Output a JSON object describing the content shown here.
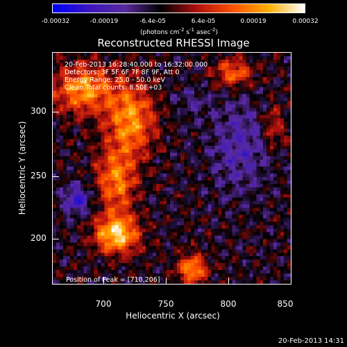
{
  "colorbar": {
    "ticks": [
      "-0.00032",
      "-0.00019",
      "-6.4e-05",
      "6.4e-05",
      "0.00019",
      "0.00032"
    ],
    "units": {
      "base": "(photons cm",
      "e1": "-2",
      "mid": " s",
      "e2": "-1",
      "mid2": " asec",
      "e3": "-2",
      "end": ")"
    },
    "colors": [
      "#0000ff",
      "#3a16c0",
      "#5a2aa0",
      "#000000",
      "#b01010",
      "#ff5000",
      "#ffb000",
      "#ffffff"
    ]
  },
  "title": "Reconstructed RHESSI Image",
  "info": {
    "line1": "20-Feb-2013 16:28:40.000 to 16:32:00.000",
    "line2": "Detectors: 3F 5F 6F 7F 8F 9F, Att 0",
    "line3": "Energy Range: 25.0 - 50.0 keV",
    "line4": "Clean     Total counts: 8.50E+03",
    "peak": "Position of Peak = [710,206]"
  },
  "axes": {
    "xlabel": "Heliocentric X (arcsec)",
    "ylabel": "Heliocentric Y (arcsec)",
    "xticks": [
      "700",
      "750",
      "800",
      "850"
    ],
    "yticks": [
      "300",
      "250",
      "200"
    ]
  },
  "timestamp": "20-Feb-2013 14:31",
  "chart_data": {
    "type": "heatmap",
    "title": "Reconstructed RHESSI Image",
    "xlabel": "Heliocentric X (arcsec)",
    "ylabel": "Heliocentric Y (arcsec)",
    "xlim": [
      662,
      852
    ],
    "ylim": [
      152,
      336
    ],
    "xticks": [
      700,
      750,
      800,
      850
    ],
    "yticks": [
      200,
      250,
      300
    ],
    "colorbar_range": [
      -0.00032,
      0.00032
    ],
    "peak_position": [
      710,
      206
    ]
  }
}
